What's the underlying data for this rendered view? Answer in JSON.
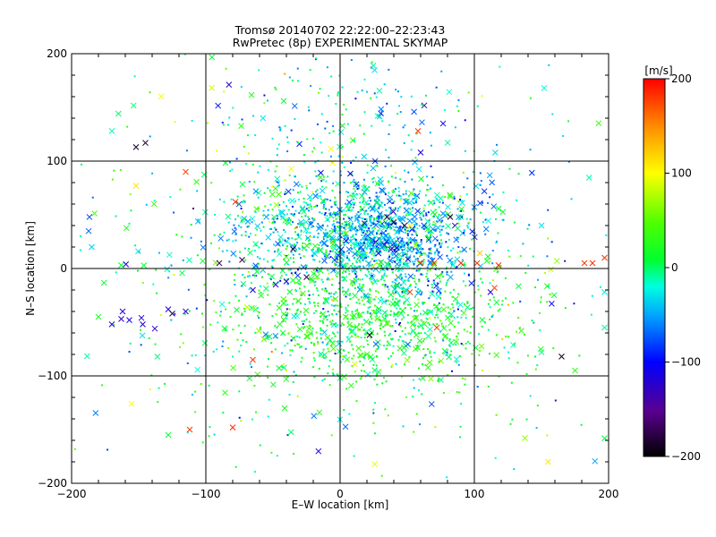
{
  "chart_data": {
    "type": "scatter",
    "title": "Tromsø 20140702 22:22:00–22:23:43",
    "subtitle": "RwPretec (8p) EXPERIMENTAL SKYMAP",
    "xlabel": "E–W location [km]",
    "ylabel": "N–S location [km]",
    "xlim": [
      -200,
      200
    ],
    "ylim": [
      -200,
      200
    ],
    "xticks": [
      -200,
      -100,
      0,
      100,
      200
    ],
    "yticks": [
      -200,
      -100,
      0,
      100,
      200
    ],
    "grid": true,
    "colorbar": {
      "label": "[m/s]",
      "range": [
        -200,
        200
      ],
      "ticks": [
        200,
        100,
        0,
        -100,
        -200
      ],
      "position": "right"
    },
    "markers": {
      "small": "dot",
      "large": "cross"
    },
    "clusters": [
      {
        "cx": 10,
        "cy": 40,
        "sx": 45,
        "sy": 25,
        "n": 900,
        "v": -25,
        "vs": 35
      },
      {
        "cx": 40,
        "cy": 25,
        "sx": 30,
        "sy": 25,
        "n": 500,
        "v": -55,
        "vs": 30
      },
      {
        "cx": 20,
        "cy": -45,
        "sx": 50,
        "sy": 30,
        "n": 800,
        "v": 15,
        "vs": 25
      },
      {
        "cx": 0,
        "cy": 0,
        "sx": 85,
        "sy": 85,
        "n": 550,
        "v": 0,
        "vs": 50
      },
      {
        "cx": 0,
        "cy": 0,
        "sx": 130,
        "sy": 120,
        "n": 260,
        "v": 0,
        "vs": 60
      },
      {
        "cx": 5,
        "cy": 150,
        "sx": 50,
        "sy": 25,
        "n": 90,
        "v": -30,
        "vs": 45
      }
    ],
    "features": [
      {
        "x": -170,
        "y": -52,
        "v": -120,
        "m": "x"
      },
      {
        "x": -163,
        "y": -47,
        "v": -125,
        "m": "x"
      },
      {
        "x": -162,
        "y": -40,
        "v": -115,
        "m": "x"
      },
      {
        "x": -157,
        "y": -48,
        "v": -110,
        "m": "x"
      },
      {
        "x": -148,
        "y": -46,
        "v": -120,
        "m": "x"
      },
      {
        "x": -147,
        "y": -52,
        "v": -118,
        "m": "x"
      },
      {
        "x": -138,
        "y": -56,
        "v": -125,
        "m": "x"
      },
      {
        "x": -128,
        "y": -38,
        "v": -115,
        "m": "x"
      },
      {
        "x": -125,
        "y": -42,
        "v": -180,
        "m": "x"
      },
      {
        "x": -115,
        "y": -40,
        "v": -120,
        "m": "x"
      },
      {
        "x": -152,
        "y": 113,
        "v": -190,
        "m": "x"
      },
      {
        "x": -145,
        "y": 117,
        "v": -180,
        "m": "x"
      },
      {
        "x": -90,
        "y": 5,
        "v": -170,
        "m": "x"
      },
      {
        "x": -73,
        "y": 8,
        "v": -175,
        "m": "x"
      },
      {
        "x": -65,
        "y": -20,
        "v": -115,
        "m": "x"
      },
      {
        "x": -48,
        "y": -15,
        "v": -120,
        "m": "x"
      },
      {
        "x": -40,
        "y": -12,
        "v": -110,
        "m": "x"
      },
      {
        "x": -35,
        "y": 18,
        "v": -185,
        "m": "x"
      },
      {
        "x": -25,
        "y": -8,
        "v": -175,
        "m": "x"
      },
      {
        "x": 22,
        "y": -62,
        "v": -190,
        "m": "x"
      },
      {
        "x": 35,
        "y": 48,
        "v": -180,
        "m": "x"
      },
      {
        "x": 40,
        "y": 43,
        "v": -185,
        "m": "x"
      },
      {
        "x": 48,
        "y": 40,
        "v": -175,
        "m": "x"
      },
      {
        "x": 60,
        "y": 108,
        "v": -115,
        "m": "x"
      },
      {
        "x": 82,
        "y": 48,
        "v": -185,
        "m": "x"
      },
      {
        "x": 165,
        "y": -82,
        "v": -190,
        "m": "x"
      },
      {
        "x": 112,
        "y": -22,
        "v": -120,
        "m": "x"
      },
      {
        "x": 58,
        "y": 128,
        "v": 180,
        "m": "x"
      },
      {
        "x": -115,
        "y": 90,
        "v": 175,
        "m": "x"
      },
      {
        "x": -78,
        "y": 62,
        "v": 180,
        "m": "x"
      },
      {
        "x": -80,
        "y": -148,
        "v": 185,
        "m": "x"
      },
      {
        "x": -112,
        "y": -150,
        "v": 180,
        "m": "x"
      },
      {
        "x": -65,
        "y": -85,
        "v": 180,
        "m": "x"
      },
      {
        "x": 60,
        "y": 5,
        "v": 185,
        "m": "x"
      },
      {
        "x": 70,
        "y": 5,
        "v": 180,
        "m": "x"
      },
      {
        "x": 90,
        "y": 5,
        "v": 185,
        "m": "x"
      },
      {
        "x": 102,
        "y": 5,
        "v": 180,
        "m": "x"
      },
      {
        "x": 118,
        "y": 3,
        "v": 185,
        "m": "x"
      },
      {
        "x": 182,
        "y": 5,
        "v": 180,
        "m": "x"
      },
      {
        "x": 188,
        "y": 5,
        "v": 185,
        "m": "x"
      },
      {
        "x": 197,
        "y": 10,
        "v": 180,
        "m": "x"
      },
      {
        "x": 52,
        "y": -22,
        "v": 180,
        "m": "x"
      },
      {
        "x": 72,
        "y": -55,
        "v": 178,
        "m": "x"
      },
      {
        "x": 115,
        "y": -18,
        "v": 175,
        "m": "x"
      },
      {
        "x": 152,
        "y": 168,
        "v": -20,
        "m": "x"
      },
      {
        "x": 150,
        "y": 40,
        "v": -30,
        "m": "x"
      },
      {
        "x": 135,
        "y": -58,
        "v": 40,
        "m": "x"
      },
      {
        "x": 150,
        "y": -78,
        "v": -10,
        "m": "x"
      },
      {
        "x": 175,
        "y": -95,
        "v": 30,
        "m": "x"
      },
      {
        "x": 155,
        "y": -180,
        "v": 110,
        "m": "x"
      },
      {
        "x": -152,
        "y": 77,
        "v": 110,
        "m": "x"
      },
      {
        "x": -170,
        "y": 128,
        "v": -15,
        "m": "x"
      },
      {
        "x": -185,
        "y": 20,
        "v": -35,
        "m": "x"
      },
      {
        "x": -180,
        "y": -45,
        "v": 20,
        "m": "x"
      },
      {
        "x": -128,
        "y": -155,
        "v": 10,
        "m": "x"
      },
      {
        "x": 197,
        "y": -158,
        "v": 5,
        "m": "x"
      },
      {
        "x": 197,
        "y": -55,
        "v": -10,
        "m": "x"
      },
      {
        "x": 197,
        "y": -22,
        "v": -25,
        "m": "x"
      }
    ]
  }
}
